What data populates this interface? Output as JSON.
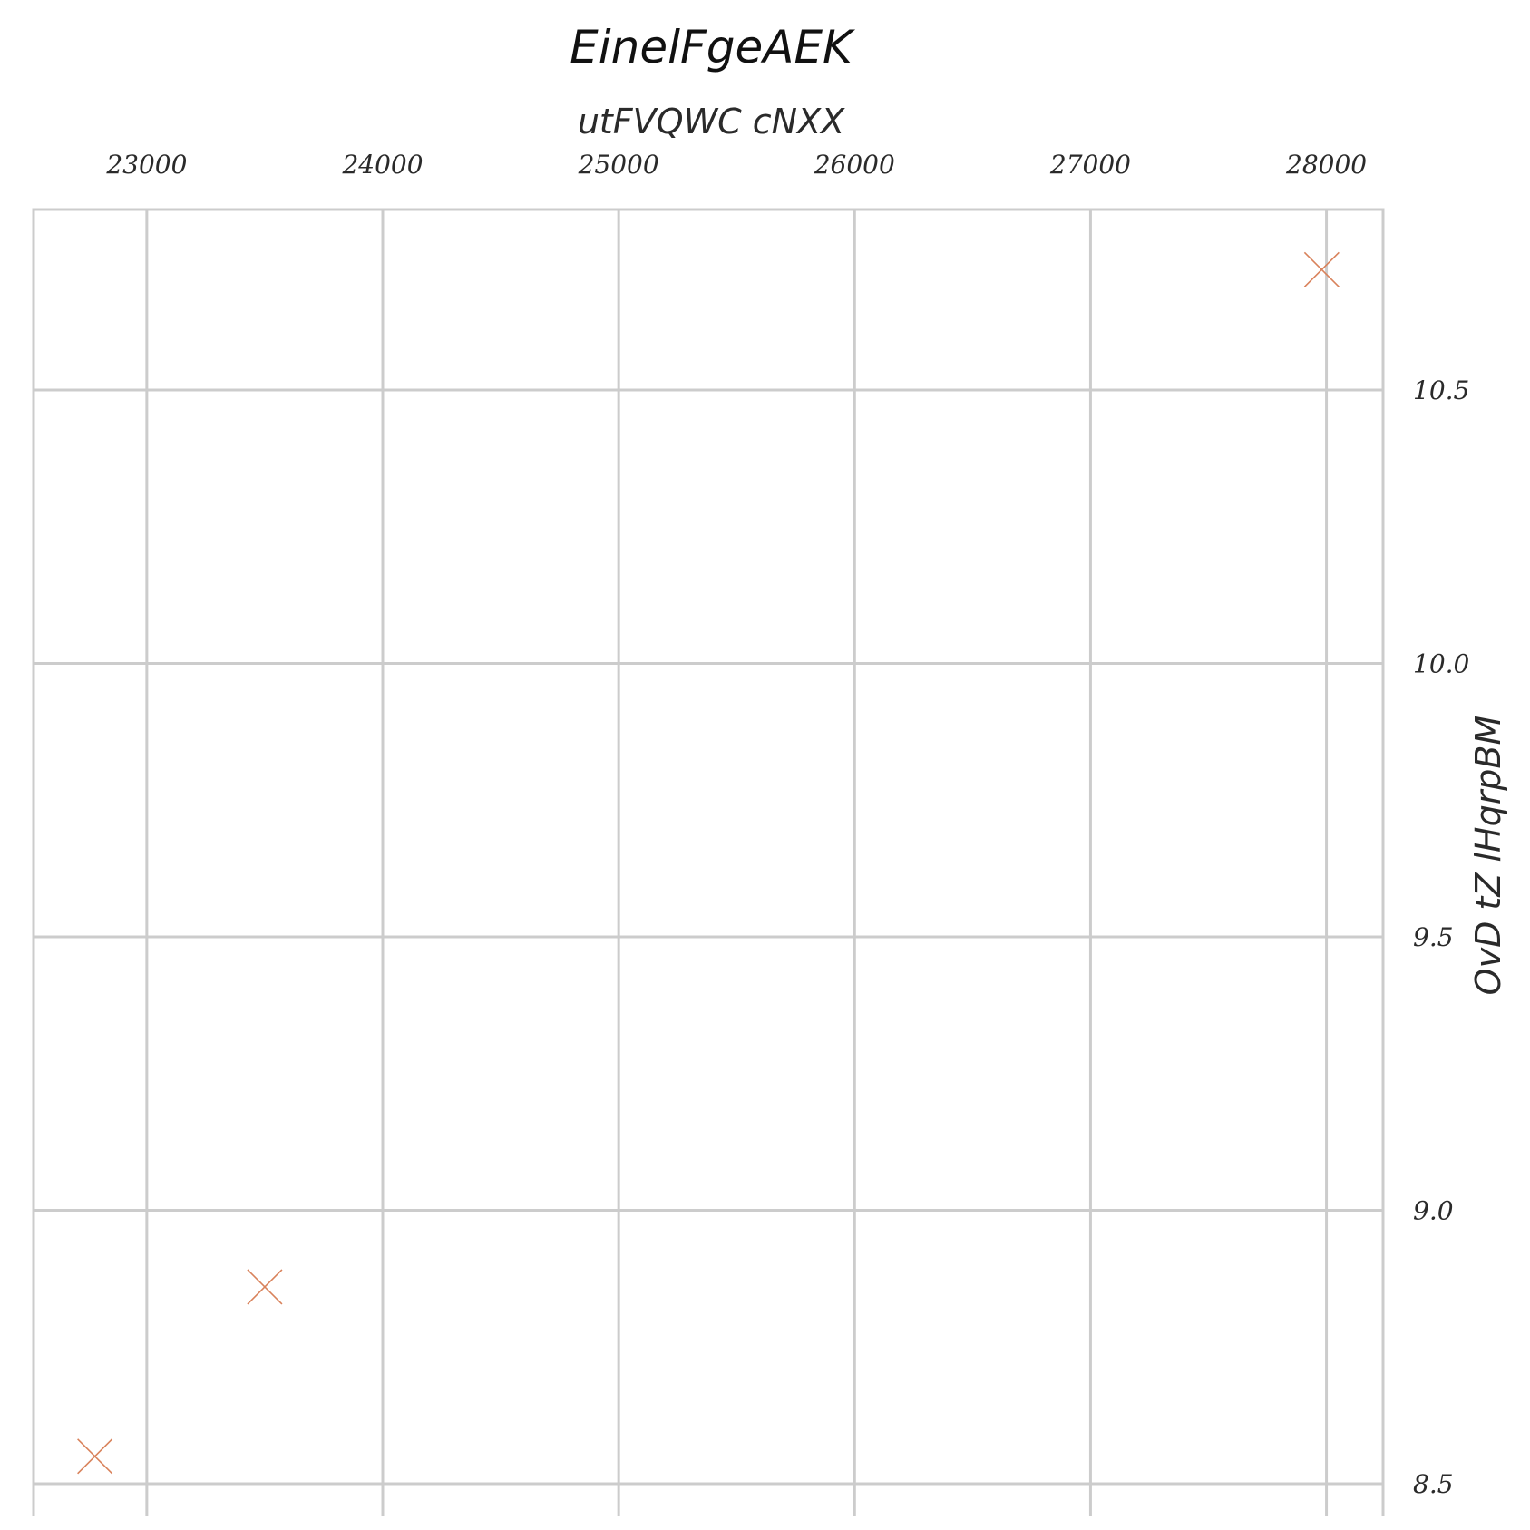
{
  "chart_data": {
    "type": "scatter",
    "title": "EinelFgeAEK",
    "xlabel": "utFVQWC cNXX",
    "ylabel": "OvD tZ lHqrpBM",
    "x_axis_position": "top",
    "y_axis_position": "right",
    "xlim": [
      22520,
      28240
    ],
    "ylim": [
      8.5,
      10.83
    ],
    "xticks": [
      23000,
      24000,
      25000,
      26000,
      27000,
      28000
    ],
    "xtick_labels": [
      "23000",
      "24000",
      "25000",
      "26000",
      "27000",
      "28000"
    ],
    "yticks": [
      8.5,
      9.0,
      9.5,
      10.0,
      10.5
    ],
    "ytick_labels": [
      "8.5",
      "9.0",
      "9.5",
      "10.0",
      "10.5"
    ],
    "grid": true,
    "marker": "x",
    "marker_color": "#d9825b",
    "grid_color": "#cccccc",
    "series": [
      {
        "x": [
          22780,
          23500,
          27980
        ],
        "y": [
          8.55,
          8.86,
          10.72
        ]
      }
    ]
  }
}
